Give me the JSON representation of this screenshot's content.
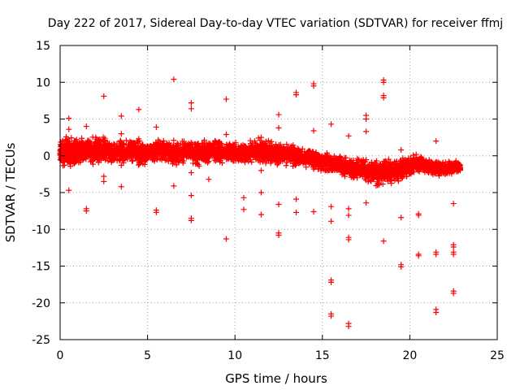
{
  "chart_data": {
    "type": "scatter",
    "title": "Day 222 of 2017, Sidereal Day-to-day VTEC variation (SDTVAR) for receiver ffmj",
    "xlabel": "GPS time / hours",
    "ylabel": "SDTVAR / TECUs",
    "xlim": [
      0,
      25
    ],
    "ylim": [
      -25,
      15
    ],
    "xticks": [
      0,
      5,
      10,
      15,
      20,
      25
    ],
    "yticks": [
      -25,
      -20,
      -15,
      -10,
      -5,
      0,
      5,
      10,
      15
    ],
    "grid": true,
    "marker": "+",
    "color": "#ff0000",
    "series": [
      {
        "name": "SDTVAR",
        "band": [
          [
            0.0,
            0.3,
            1.2
          ],
          [
            0.2,
            0.5,
            1.5
          ],
          [
            0.5,
            0.6,
            1.4
          ],
          [
            0.8,
            0.5,
            1.3
          ],
          [
            1.0,
            0.6,
            1.2
          ],
          [
            1.3,
            0.7,
            1.2
          ],
          [
            1.6,
            0.6,
            1.1
          ],
          [
            2.0,
            0.8,
            1.3
          ],
          [
            2.3,
            0.9,
            1.4
          ],
          [
            2.6,
            0.8,
            1.3
          ],
          [
            3.0,
            0.4,
            1.2
          ],
          [
            3.4,
            0.5,
            1.3
          ],
          [
            3.8,
            0.6,
            1.2
          ],
          [
            4.2,
            0.7,
            1.3
          ],
          [
            4.6,
            0.4,
            1.2
          ],
          [
            5.0,
            0.4,
            1.1
          ],
          [
            5.4,
            0.6,
            1.1
          ],
          [
            5.8,
            0.8,
            1.2
          ],
          [
            6.2,
            0.5,
            1.2
          ],
          [
            6.6,
            0.3,
            1.2
          ],
          [
            7.0,
            0.4,
            1.1
          ],
          [
            7.4,
            0.6,
            1.2
          ],
          [
            7.8,
            0.3,
            1.1
          ],
          [
            8.2,
            0.4,
            1.2
          ],
          [
            8.6,
            0.5,
            1.1
          ],
          [
            9.0,
            0.6,
            1.2
          ],
          [
            9.4,
            0.4,
            1.0
          ],
          [
            9.8,
            0.5,
            1.1
          ],
          [
            10.2,
            0.3,
            1.0
          ],
          [
            10.6,
            0.4,
            1.1
          ],
          [
            11.0,
            0.6,
            1.2
          ],
          [
            11.4,
            0.8,
            1.3
          ],
          [
            11.8,
            0.5,
            1.2
          ],
          [
            12.2,
            0.3,
            1.1
          ],
          [
            12.6,
            0.1,
            1.1
          ],
          [
            13.0,
            0.2,
            1.1
          ],
          [
            13.4,
            0.0,
            1.0
          ],
          [
            13.8,
            -0.2,
            0.9
          ],
          [
            14.2,
            -0.3,
            0.9
          ],
          [
            14.6,
            -0.5,
            0.9
          ],
          [
            15.0,
            -0.9,
            0.9
          ],
          [
            15.4,
            -1.1,
            1.0
          ],
          [
            15.8,
            -1.2,
            0.9
          ],
          [
            16.2,
            -1.4,
            1.0
          ],
          [
            16.6,
            -1.7,
            1.0
          ],
          [
            17.0,
            -1.8,
            1.0
          ],
          [
            17.4,
            -1.9,
            1.0
          ],
          [
            17.8,
            -2.2,
            1.2
          ],
          [
            18.2,
            -2.4,
            1.3
          ],
          [
            18.6,
            -2.1,
            1.3
          ],
          [
            19.0,
            -2.2,
            1.2
          ],
          [
            19.4,
            -2.0,
            1.1
          ],
          [
            19.8,
            -1.7,
            1.0
          ],
          [
            20.2,
            -1.2,
            1.0
          ],
          [
            20.6,
            -1.0,
            0.9
          ],
          [
            21.0,
            -1.3,
            0.8
          ],
          [
            21.4,
            -1.6,
            0.8
          ],
          [
            21.8,
            -1.8,
            0.7
          ],
          [
            22.2,
            -1.6,
            0.7
          ],
          [
            22.6,
            -1.5,
            0.6
          ],
          [
            22.9,
            -1.4,
            0.6
          ]
        ],
        "outliers": [
          [
            0.5,
            5.1
          ],
          [
            0.5,
            3.6
          ],
          [
            0.5,
            -4.7
          ],
          [
            1.5,
            4.0
          ],
          [
            1.5,
            -7.2
          ],
          [
            1.5,
            -7.5
          ],
          [
            2.5,
            8.1
          ],
          [
            2.5,
            -2.8
          ],
          [
            2.5,
            -3.5
          ],
          [
            3.5,
            5.4
          ],
          [
            3.5,
            3.0
          ],
          [
            3.5,
            -1.3
          ],
          [
            3.5,
            -4.2
          ],
          [
            4.5,
            6.3
          ],
          [
            4.5,
            2.3
          ],
          [
            5.5,
            3.9
          ],
          [
            5.5,
            -7.4
          ],
          [
            5.5,
            -7.7
          ],
          [
            6.5,
            10.4
          ],
          [
            6.5,
            -4.1
          ],
          [
            7.5,
            7.2
          ],
          [
            7.5,
            6.4
          ],
          [
            7.5,
            -2.3
          ],
          [
            7.5,
            -5.4
          ],
          [
            7.5,
            -8.5
          ],
          [
            7.5,
            -8.8
          ],
          [
            8.5,
            1.7
          ],
          [
            8.5,
            -3.2
          ],
          [
            9.5,
            7.7
          ],
          [
            9.5,
            2.9
          ],
          [
            9.5,
            -11.3
          ],
          [
            10.5,
            -5.7
          ],
          [
            10.5,
            -7.3
          ],
          [
            11.5,
            2.5
          ],
          [
            11.5,
            -2.0
          ],
          [
            11.5,
            -5.0
          ],
          [
            11.5,
            -8.0
          ],
          [
            12.5,
            5.6
          ],
          [
            12.5,
            3.8
          ],
          [
            12.5,
            -6.6
          ],
          [
            12.5,
            -10.5
          ],
          [
            12.5,
            -10.8
          ],
          [
            13.5,
            8.6
          ],
          [
            13.5,
            8.3
          ],
          [
            13.5,
            -5.9
          ],
          [
            13.5,
            -7.7
          ],
          [
            14.5,
            9.8
          ],
          [
            14.5,
            9.5
          ],
          [
            14.5,
            3.4
          ],
          [
            14.5,
            -1.8
          ],
          [
            14.5,
            -7.6
          ],
          [
            15.5,
            4.3
          ],
          [
            15.5,
            -6.9
          ],
          [
            15.5,
            -8.9
          ],
          [
            15.5,
            -16.9
          ],
          [
            15.5,
            -17.2
          ],
          [
            15.5,
            -21.5
          ],
          [
            15.5,
            -21.8
          ],
          [
            16.5,
            2.7
          ],
          [
            16.5,
            -7.2
          ],
          [
            16.5,
            -8.1
          ],
          [
            16.5,
            -11.1
          ],
          [
            16.5,
            -11.4
          ],
          [
            16.5,
            -22.8
          ],
          [
            16.5,
            -23.2
          ],
          [
            17.5,
            5.5
          ],
          [
            17.5,
            5.0
          ],
          [
            17.5,
            3.3
          ],
          [
            17.5,
            -6.4
          ],
          [
            18.5,
            10.3
          ],
          [
            18.5,
            10.0
          ],
          [
            18.5,
            8.2
          ],
          [
            18.5,
            7.9
          ],
          [
            18.5,
            -11.6
          ],
          [
            19.5,
            0.8
          ],
          [
            19.5,
            -8.4
          ],
          [
            19.5,
            -14.8
          ],
          [
            19.5,
            -15.1
          ],
          [
            20.5,
            -7.9
          ],
          [
            20.5,
            -8.1
          ],
          [
            20.5,
            -13.4
          ],
          [
            20.5,
            -13.6
          ],
          [
            21.5,
            2.0
          ],
          [
            21.5,
            -13.1
          ],
          [
            21.5,
            -13.4
          ],
          [
            21.5,
            -20.9
          ],
          [
            21.5,
            -21.3
          ],
          [
            22.5,
            -6.5
          ],
          [
            22.5,
            -12.1
          ],
          [
            22.5,
            -12.4
          ],
          [
            22.5,
            -13.1
          ],
          [
            22.5,
            -13.4
          ],
          [
            22.5,
            -18.4
          ],
          [
            22.5,
            -18.7
          ]
        ]
      }
    ]
  }
}
